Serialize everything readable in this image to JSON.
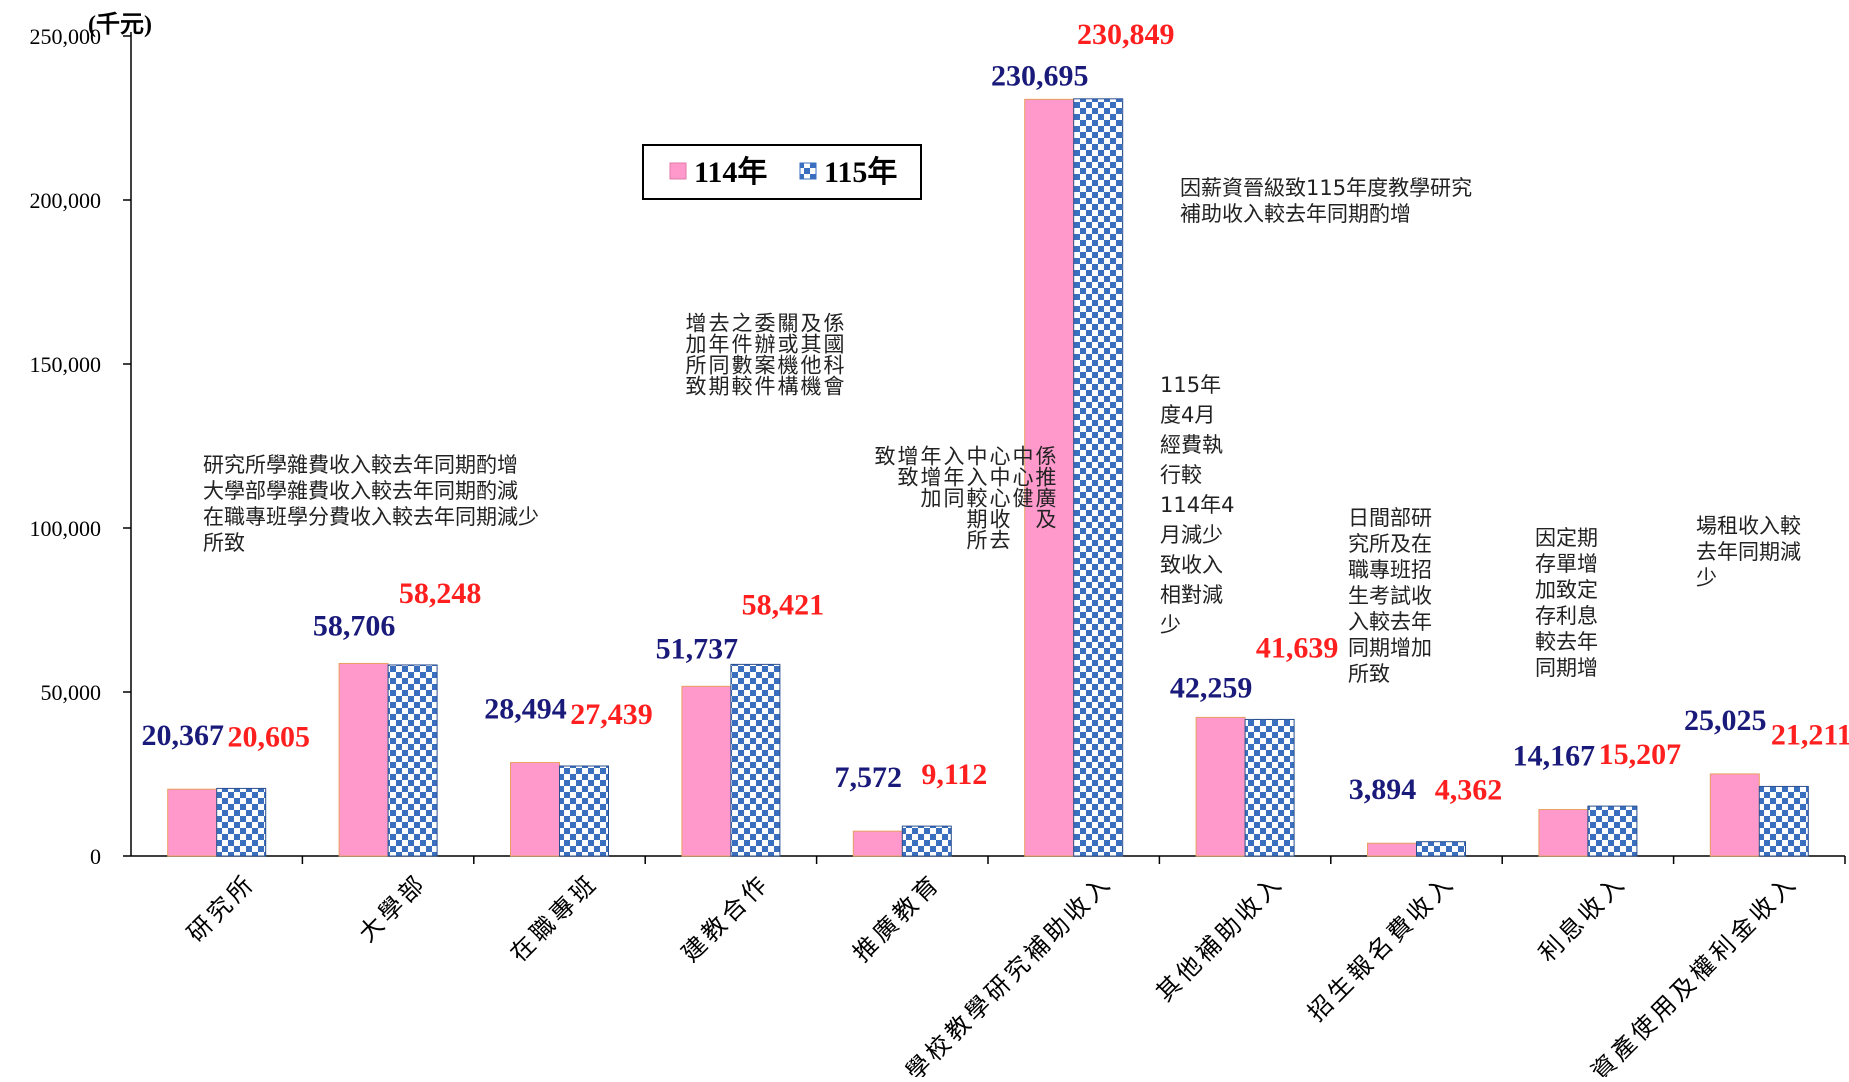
{
  "chart_data": {
    "type": "bar",
    "unit": "(千元)",
    "ylim": [
      0,
      250000
    ],
    "yticks": [
      "0",
      "50,000",
      "100,000",
      "150,000",
      "200,000",
      "250,000"
    ],
    "categories": [
      "研究所",
      "大學部",
      "在職專班",
      "建教合作",
      "推廣教育",
      "學校教學研究補助收入",
      "其他補助收入",
      "招生報名費收入",
      "利息收入",
      "資產使用及權利金收入"
    ],
    "series": [
      {
        "name": "114年",
        "color": "#ff99cc",
        "values": [
          20367,
          58706,
          28494,
          51737,
          7572,
          230695,
          42259,
          3894,
          14167,
          25025
        ],
        "labels": [
          "20,367",
          "58,706",
          "28,494",
          "51,737",
          "7,572",
          "230,695",
          "42,259",
          "3,894",
          "14,167",
          "25,025"
        ]
      },
      {
        "name": "115年",
        "color": "#3a6fbf",
        "values": [
          20605,
          58248,
          27439,
          58421,
          9112,
          230849,
          41639,
          4362,
          15207,
          21211
        ],
        "labels": [
          "20,605",
          "58,248",
          "27,439",
          "58,421",
          "9,112",
          "230,849",
          "41,639",
          "4,362",
          "15,207",
          "21,211"
        ]
      }
    ],
    "legend": "top-center",
    "grid": false
  },
  "annotations": {
    "note_1": "研究所學雜費收入較去年同期酌增\n大學部學雜費收入較去年同期酌減\n在職專班學分費收入較去年同期減少\n所致",
    "note_2": "係國科會\n及其他機\n關或機構\n委辦案件\n之件數較\n去年同期\n增加所致",
    "note_3": "係推廣及\n中心健\n心中心收去\n中入較期所\n入年同\n年增加\n增致\n致",
    "note_4": "因薪資晉級致115年度教學研究\n補助收入較去年同期酌增",
    "note_5": "115年\n度4月\n經費執\n行較\n114年4\n月減少\n致收入\n相對減\n少",
    "note_6": "日間部研\n究所及在\n職專班招\n生考試收\n入較去年\n同期增加\n所致",
    "note_7": "因定期\n存單增\n加致定\n存利息\n較去年\n同期增",
    "note_8": "場租收入較\n去年同期減\n少"
  }
}
